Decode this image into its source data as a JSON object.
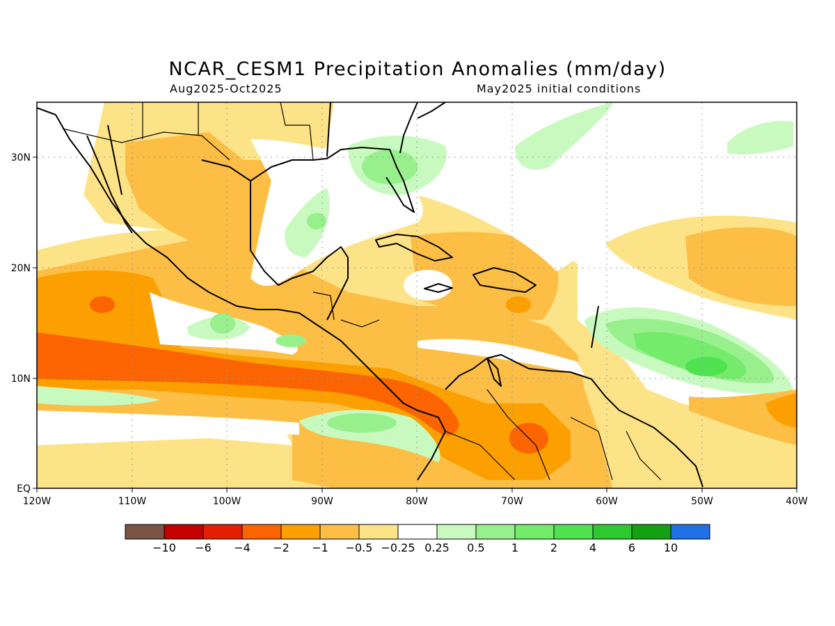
{
  "title": "NCAR_CESM1 Precipitation Anomalies (mm/day)",
  "period": "Aug2025-Oct2025",
  "init": "May2025 initial conditions",
  "lon_labels": [
    "120W",
    "110W",
    "100W",
    "90W",
    "80W",
    "70W",
    "60W",
    "50W",
    "40W"
  ],
  "lat_labels": [
    "30N",
    "20N",
    "10N",
    "EQ"
  ],
  "colorbar": {
    "colors": [
      "#7a5446",
      "#c40000",
      "#e61e00",
      "#fb6400",
      "#fba000",
      "#fcbe44",
      "#fde388",
      "#ffffff",
      "#c8fac0",
      "#98f08c",
      "#74eb6a",
      "#50e250",
      "#30c830",
      "#13a013",
      "#2170e6"
    ],
    "labels": [
      "−10",
      "−6",
      "−4",
      "−2",
      "−1",
      "−0.5",
      "−0.25",
      "0.25",
      "0.5",
      "1",
      "2",
      "4",
      "6",
      "10"
    ]
  },
  "colors": {
    "land": "#000000",
    "grid": "#999999"
  }
}
